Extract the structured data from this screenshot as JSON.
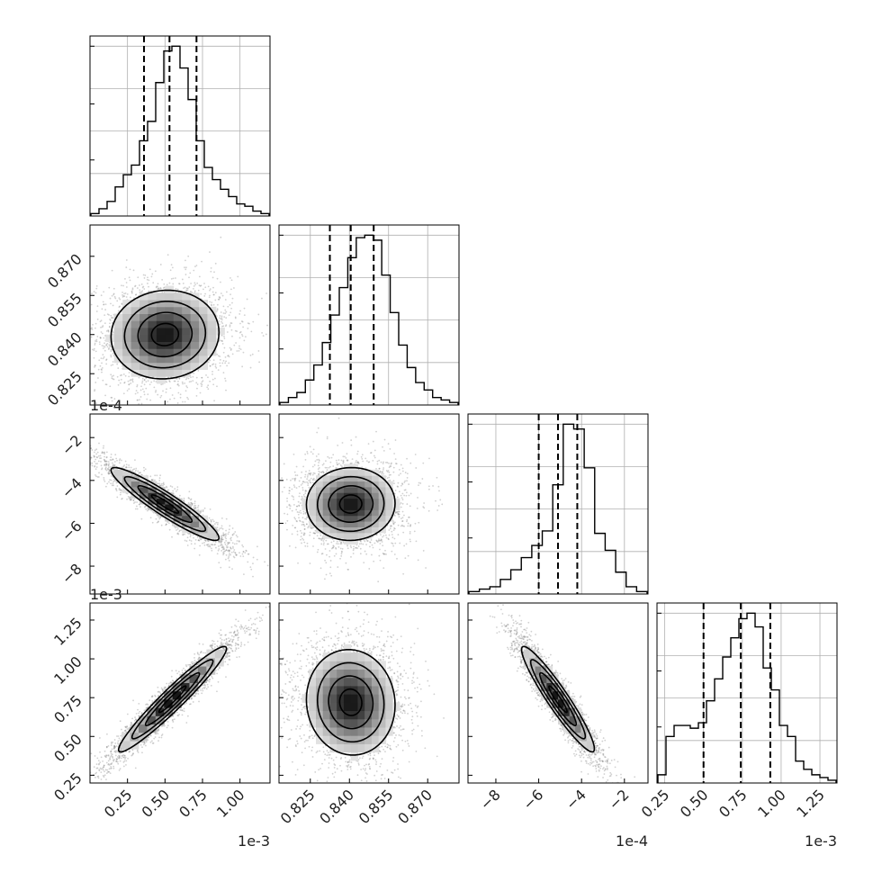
{
  "chart_data": {
    "type": "corner",
    "grid": true,
    "parameters": [
      {
        "id": "p0",
        "exponent": "1e-3",
        "range": [
          0.0,
          1.2
        ],
        "ticks": [
          {
            "v": 0.25,
            "t": "0.25"
          },
          {
            "v": 0.5,
            "t": "0.50"
          },
          {
            "v": 0.75,
            "t": "0.75"
          },
          {
            "v": 1.0,
            "t": "1.00"
          }
        ],
        "quantiles": [
          0.36,
          0.53,
          0.71
        ],
        "hist": [
          1,
          3,
          6,
          12,
          17,
          21,
          31,
          39,
          55,
          68,
          70,
          61,
          48,
          31,
          20,
          15,
          11,
          8,
          5,
          4,
          2,
          1
        ]
      },
      {
        "id": "p1",
        "exponent": "",
        "range": [
          0.813,
          0.882
        ],
        "ticks": [
          {
            "v": 0.825,
            "t": "0.825"
          },
          {
            "v": 0.84,
            "t": "0.840"
          },
          {
            "v": 0.855,
            "t": "0.855"
          },
          {
            "v": 0.87,
            "t": "0.870"
          }
        ],
        "quantiles": [
          0.8325,
          0.8405,
          0.8493
        ],
        "hist": [
          1,
          3,
          5,
          10,
          16,
          25,
          36,
          47,
          59,
          67,
          68,
          66,
          52,
          37,
          24,
          15,
          9,
          6,
          3,
          2,
          1
        ]
      },
      {
        "id": "p2",
        "exponent": "1e-4",
        "range": [
          -9.3,
          -0.9
        ],
        "ticks": [
          {
            "v": -8,
            "t": "−8"
          },
          {
            "v": -6,
            "t": "−6"
          },
          {
            "v": -4,
            "t": "−4"
          },
          {
            "v": -2,
            "t": "−2"
          }
        ],
        "quantiles": [
          -6.0,
          -5.1,
          -4.2
        ],
        "hist": [
          1,
          2,
          3,
          6,
          10,
          15,
          20,
          26,
          45,
          70,
          68,
          52,
          25,
          18,
          9,
          3,
          1
        ]
      },
      {
        "id": "p3",
        "exponent": "1e-3",
        "range": [
          0.2,
          1.36
        ],
        "ticks": [
          {
            "v": 0.25,
            "t": "0.25"
          },
          {
            "v": 0.5,
            "t": "0.50"
          },
          {
            "v": 0.75,
            "t": "0.75"
          },
          {
            "v": 1.0,
            "t": "1.00"
          },
          {
            "v": 1.25,
            "t": "1.25"
          }
        ],
        "quantiles": [
          0.5,
          0.74,
          0.93
        ],
        "hist": [
          3,
          17,
          21,
          21,
          20,
          22,
          30,
          38,
          46,
          53,
          60,
          62,
          57,
          42,
          34,
          21,
          17,
          8,
          5,
          3,
          2,
          1
        ]
      }
    ],
    "pairs": [
      {
        "x": "p0",
        "y": "p1",
        "center": [
          0.5,
          0.84
        ],
        "sd": [
          0.18,
          0.0085
        ],
        "corr": 0.05
      },
      {
        "x": "p0",
        "y": "p2",
        "center": [
          0.5,
          -5.1
        ],
        "sd": [
          0.18,
          0.85
        ],
        "corr": -0.93
      },
      {
        "x": "p1",
        "y": "p2",
        "center": [
          0.8405,
          -5.1
        ],
        "sd": [
          0.0085,
          0.85
        ],
        "corr": 0.02
      },
      {
        "x": "p0",
        "y": "p3",
        "center": [
          0.55,
          0.74
        ],
        "sd": [
          0.18,
          0.17
        ],
        "corr": 0.96
      },
      {
        "x": "p1",
        "y": "p3",
        "center": [
          0.8405,
          0.72
        ],
        "sd": [
          0.0085,
          0.17
        ],
        "corr": -0.05
      },
      {
        "x": "p2",
        "y": "p3",
        "center": [
          -5.1,
          0.74
        ],
        "sd": [
          0.85,
          0.17
        ],
        "corr": -0.94
      }
    ]
  }
}
